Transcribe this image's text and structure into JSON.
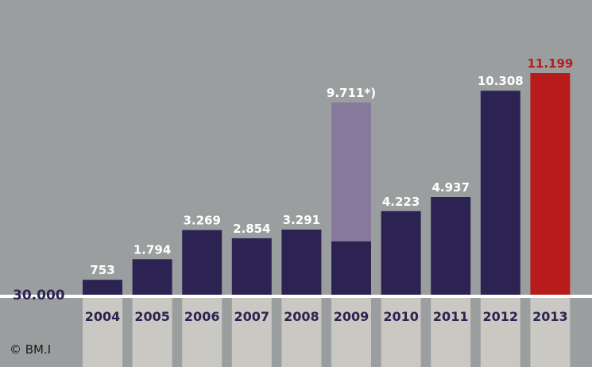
{
  "chart_data": {
    "type": "bar",
    "categories": [
      "2004",
      "2005",
      "2006",
      "2007",
      "2008",
      "2009",
      "2010",
      "2011",
      "2012",
      "2013"
    ],
    "series": [
      {
        "values": [
          753,
          1794,
          3269,
          2854,
          3291,
          2700,
          4223,
          4937,
          10308,
          11199
        ]
      }
    ],
    "stacked_extra": {
      "category": "2009",
      "value": 7011,
      "total_label": "9.711*)"
    },
    "value_labels": [
      "753",
      "1.794",
      "3.269",
      "2.854",
      "3.291",
      "9.711*)",
      "4.223",
      "4.937",
      "10.308",
      "11.199"
    ],
    "baseline_label": "30.000",
    "ylim": [
      0,
      12000
    ],
    "grid": false,
    "colors": {
      "bar": "#2c2353",
      "bar_2009_upper": "#867a9c",
      "highlight": "#b81b1b",
      "label": "#ffffff",
      "highlight_label": "#b81b1b",
      "baseline": "#ffffff",
      "year_box": "#cac8c2",
      "year_text": "#2c2353"
    },
    "highlight_category": "2013"
  },
  "copyright": "© BM.I"
}
